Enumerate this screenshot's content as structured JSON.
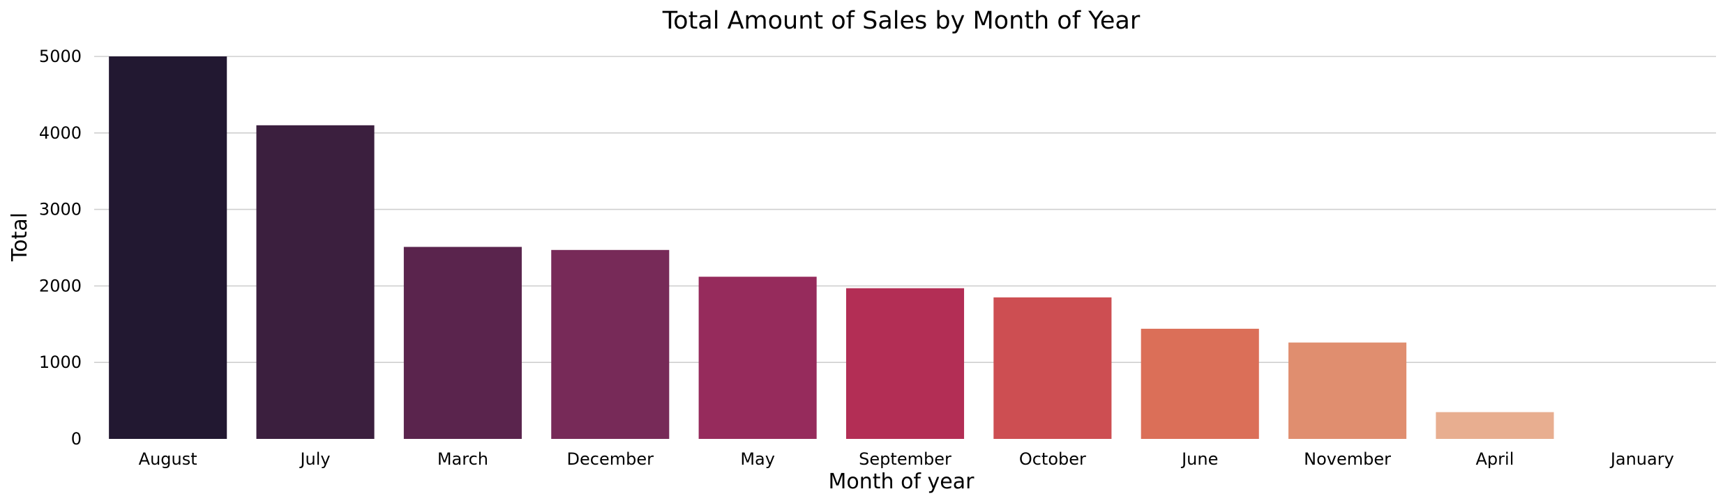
{
  "chart_data": {
    "type": "bar",
    "title": "Total Amount of Sales by Month of Year",
    "xlabel": "Month of year",
    "ylabel": "Total",
    "categories": [
      "August",
      "July",
      "March",
      "December",
      "May",
      "September",
      "October",
      "June",
      "November",
      "April",
      "January"
    ],
    "values": [
      5000,
      4100,
      2510,
      2470,
      2120,
      1970,
      1850,
      1440,
      1260,
      350,
      0
    ],
    "ylim": [
      0,
      5000
    ],
    "yticks": [
      0,
      1000,
      2000,
      3000,
      4000,
      5000
    ],
    "grid": "horizontal",
    "legend": "none",
    "colors": [
      "#221831",
      "#3b1f3e",
      "#5a244d",
      "#772a58",
      "#962b5c",
      "#b32e55",
      "#cd4e52",
      "#db6f58",
      "#e08e6f",
      "#e8ae90",
      "#f1d1bc"
    ]
  }
}
